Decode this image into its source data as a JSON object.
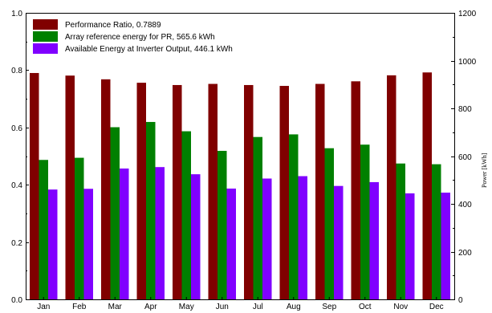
{
  "chart_data": {
    "type": "bar",
    "categories": [
      "Jan",
      "Feb",
      "Mar",
      "Apr",
      "May",
      "Jun",
      "Jul",
      "Aug",
      "Sep",
      "Oct",
      "Nov",
      "Dec"
    ],
    "series": [
      {
        "name": "Performance Ratio,  0.7889",
        "axis": "left",
        "color": "#800000",
        "values": [
          0.79,
          0.781,
          0.768,
          0.756,
          0.748,
          0.752,
          0.748,
          0.745,
          0.752,
          0.761,
          0.782,
          0.792
        ]
      },
      {
        "name": "Array reference energy for PR,  565.6 kWh",
        "axis": "right",
        "color": "#008000",
        "values": [
          584,
          593,
          721,
          743,
          704,
          622,
          680,
          691,
          633,
          648,
          569,
          566
        ]
      },
      {
        "name": "Available Energy at Inverter Output,  446.1 kWh",
        "axis": "right",
        "color": "#8000ff",
        "values": [
          460,
          463,
          548,
          554,
          524,
          464,
          506,
          516,
          475,
          491,
          444,
          447
        ]
      }
    ],
    "y_left": {
      "lim": [
        0,
        1.0
      ],
      "ticks": [
        "0.0",
        "0.2",
        "0.4",
        "0.6",
        "0.8",
        "1.0"
      ]
    },
    "y_right": {
      "lim": [
        0,
        1200
      ],
      "ticks": [
        "0",
        "200",
        "400",
        "600",
        "800",
        "1000",
        "1200"
      ],
      "label": "Power  [kWh]"
    },
    "grid": false,
    "legend_placement": "top-left"
  }
}
